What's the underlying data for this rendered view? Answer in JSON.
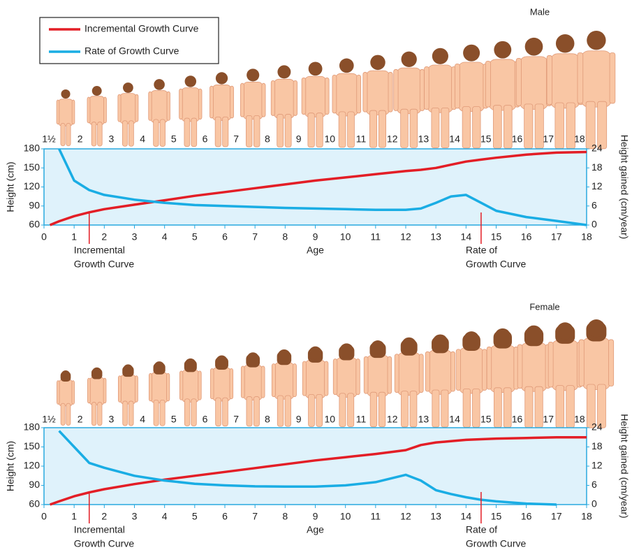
{
  "chart_data": [
    {
      "type": "line",
      "title": "Male",
      "xlabel": "Age",
      "ylabel": "Height (cm)",
      "y2label": "Height gained (cm/year)",
      "legend": "upper left",
      "figure_labels": [
        "1½",
        "2",
        "3",
        "4",
        "5",
        "6",
        "7",
        "8",
        "9",
        "10",
        "11",
        "12",
        "13",
        "14",
        "15",
        "16",
        "17",
        "18"
      ],
      "annotations": [
        [
          "Incremental",
          "Growth Curve"
        ],
        [
          "Rate of",
          "Growth Curve"
        ]
      ],
      "x": [
        0.2,
        0.5,
        1,
        1.5,
        2,
        3,
        4,
        5,
        6,
        7,
        8,
        9,
        10,
        11,
        12,
        12.5,
        13,
        13.5,
        14,
        14.5,
        15,
        16,
        17,
        18
      ],
      "series": [
        {
          "name": "Incremental Growth Curve",
          "color": "#e31e26",
          "values": [
            60,
            66,
            74,
            80,
            85,
            92,
            99,
            106,
            112,
            118,
            124,
            130,
            135,
            140,
            145,
            147,
            150,
            155,
            160,
            163,
            166,
            171,
            174,
            175
          ]
        },
        {
          "name": "Rate of Growth Curve",
          "color": "#1aade4",
          "axis": "y2",
          "values": [
            null,
            24,
            14,
            11,
            9.5,
            8,
            7,
            6.3,
            6,
            5.7,
            5.4,
            5.2,
            5,
            4.8,
            4.8,
            5.2,
            7,
            9,
            9.5,
            7,
            4.5,
            2.5,
            1.3,
            0
          ]
        }
      ],
      "xlim": [
        0,
        18
      ],
      "xticks": [
        0,
        1,
        2,
        3,
        4,
        5,
        6,
        7,
        8,
        9,
        10,
        11,
        12,
        13,
        14,
        15,
        16,
        17,
        18
      ],
      "ylim": [
        60,
        180
      ],
      "yticks": [
        60,
        90,
        120,
        150,
        180
      ],
      "y2lim": [
        0,
        24
      ],
      "y2ticks": [
        0,
        6,
        12,
        18,
        24
      ]
    },
    {
      "type": "line",
      "title": "Female",
      "xlabel": "Age",
      "ylabel": "Height (cm)",
      "y2label": "Height gained (cm/year)",
      "figure_labels": [
        "1½",
        "2",
        "3",
        "4",
        "5",
        "6",
        "7",
        "8",
        "9",
        "10",
        "11",
        "12",
        "13",
        "14",
        "15",
        "16",
        "17",
        "18"
      ],
      "annotations": [
        [
          "Incremental",
          "Growth Curve"
        ],
        [
          "Rate of",
          "Growth Curve"
        ]
      ],
      "x": [
        0.2,
        0.5,
        1,
        1.5,
        2,
        3,
        4,
        5,
        6,
        7,
        8,
        9,
        10,
        11,
        12,
        12.5,
        13,
        13.5,
        14,
        14.5,
        15,
        16,
        17,
        18
      ],
      "series": [
        {
          "name": "Incremental Growth Curve",
          "color": "#e31e26",
          "values": [
            60,
            65,
            73,
            79,
            84,
            92,
            99,
            105,
            111,
            117,
            123,
            129,
            134,
            139,
            145,
            153,
            157,
            159,
            161,
            162,
            163,
            164,
            165,
            165
          ]
        },
        {
          "name": "Rate of Growth Curve",
          "color": "#1aade4",
          "axis": "y2",
          "values": [
            null,
            23,
            18,
            13,
            11.5,
            9,
            7.5,
            6.5,
            6,
            5.7,
            5.6,
            5.6,
            6,
            7,
            9.3,
            7.5,
            4.5,
            3.3,
            2.3,
            1.5,
            1,
            0.3,
            0,
            null
          ]
        }
      ],
      "xlim": [
        0,
        18
      ],
      "xticks": [
        0,
        1,
        2,
        3,
        4,
        5,
        6,
        7,
        8,
        9,
        10,
        11,
        12,
        13,
        14,
        15,
        16,
        17,
        18
      ],
      "ylim": [
        60,
        180
      ],
      "yticks": [
        60,
        90,
        120,
        150,
        180
      ],
      "y2lim": [
        0,
        24
      ],
      "y2ticks": [
        0,
        6,
        12,
        18,
        24
      ]
    }
  ]
}
